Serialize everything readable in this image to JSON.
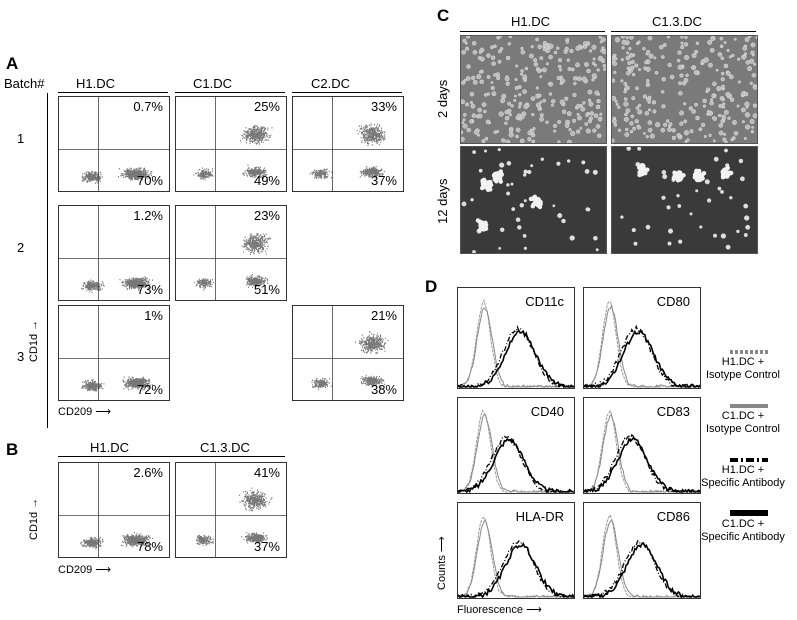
{
  "panelA": {
    "letter": "A",
    "batch_label": "Batch#",
    "columns": [
      "H1.DC",
      "C1.DC",
      "C2.DC"
    ],
    "rows": [
      "1",
      "2",
      "3"
    ],
    "y_axis": "CD1d",
    "x_axis": "CD209",
    "plots": [
      {
        "top": "0.7%",
        "bottom": "70%"
      },
      {
        "top": "25%",
        "bottom": "49%"
      },
      {
        "top": "33%",
        "bottom": "37%"
      },
      {
        "top": "1.2%",
        "bottom": "73%"
      },
      {
        "top": "23%",
        "bottom": "51%"
      },
      {
        "top": "1%",
        "bottom": "72%"
      },
      {
        "top": "21%",
        "bottom": "38%"
      }
    ]
  },
  "panelB": {
    "letter": "B",
    "columns": [
      "H1.DC",
      "C1.3.DC"
    ],
    "y_axis": "CD1d",
    "x_axis": "CD209",
    "plots": [
      {
        "top": "2.6%",
        "bottom": "78%"
      },
      {
        "top": "41%",
        "bottom": "37%"
      }
    ]
  },
  "panelC": {
    "letter": "C",
    "columns": [
      "H1.DC",
      "C1.3.DC"
    ],
    "rows": [
      "2 days",
      "12 days"
    ]
  },
  "panelD": {
    "letter": "D",
    "markers": [
      "CD11c",
      "CD80",
      "CD40",
      "CD83",
      "HLA-DR",
      "CD86"
    ],
    "y_axis": "Counts",
    "x_axis": "Fluorescence",
    "legend": [
      {
        "line1": "H1.DC +",
        "line2": "Isotype Control"
      },
      {
        "line1": "C1.DC +",
        "line2": "Isotype Control"
      },
      {
        "line1": "H1.DC +",
        "line2": "Specific Antibody"
      },
      {
        "line1": "C1.DC +",
        "line2": "Specific Antibody"
      }
    ]
  }
}
